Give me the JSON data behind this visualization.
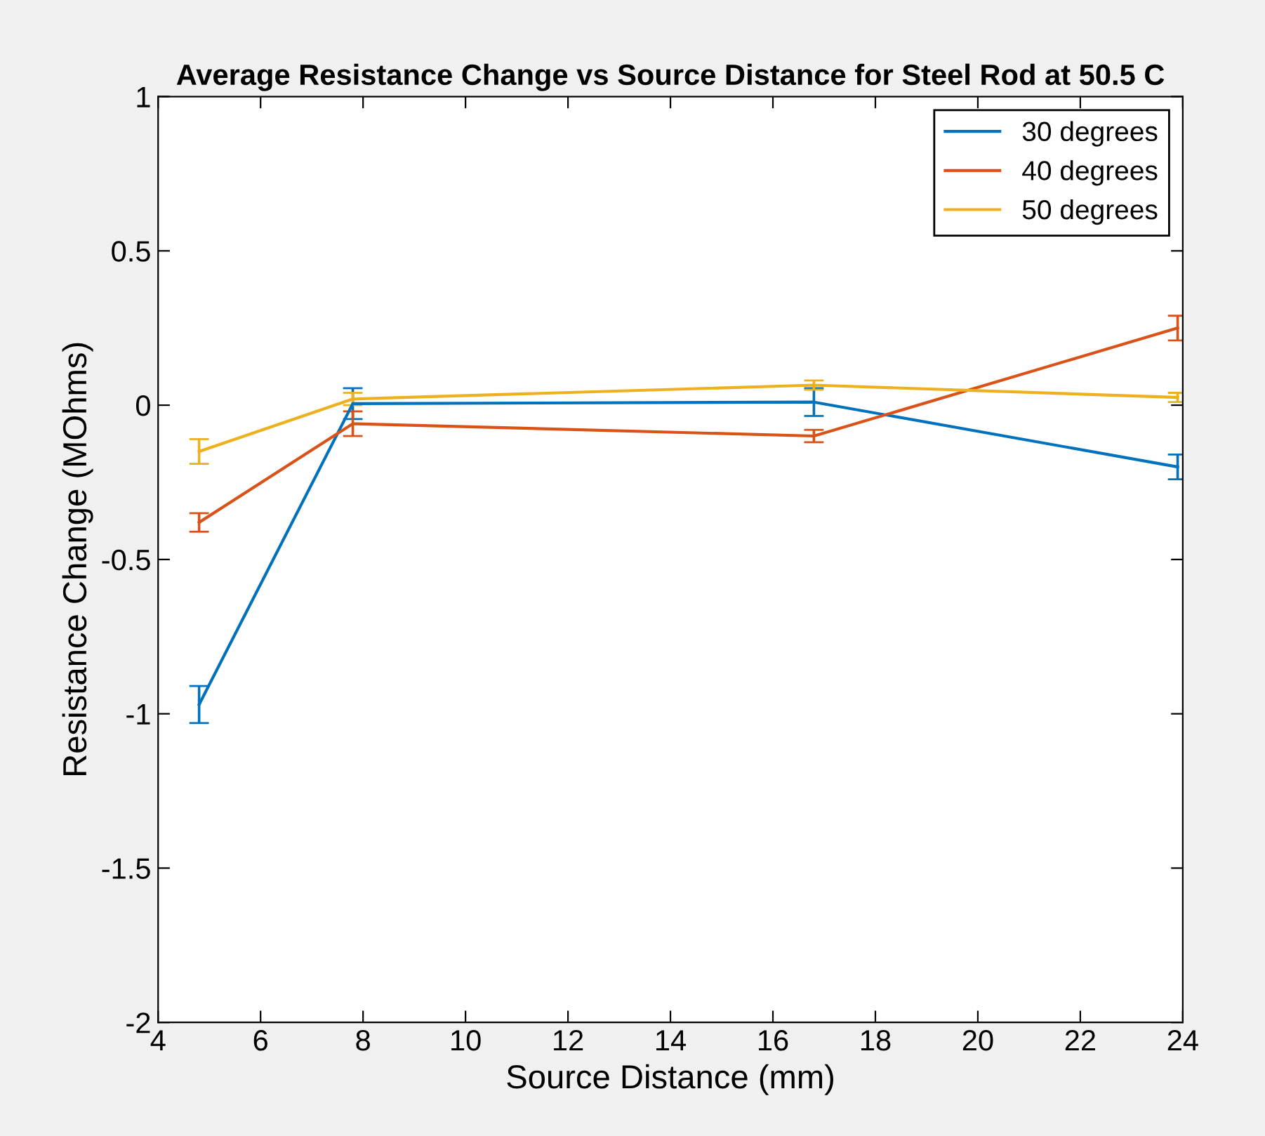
{
  "chart_data": {
    "type": "line",
    "title": "Average Resistance Change vs Source Distance for Steel Rod at 50.5 C",
    "xlabel": "Source Distance (mm)",
    "ylabel": "Resistance Change (MOhms)",
    "x": [
      4.8,
      7.8,
      16.8,
      23.9
    ],
    "series": [
      {
        "name": "30 degrees",
        "color": "#0072bd",
        "values": [
          -0.97,
          0.005,
          0.01,
          -0.2
        ],
        "errors": [
          0.06,
          0.05,
          0.045,
          0.04
        ]
      },
      {
        "name": "40 degrees",
        "color": "#d95319",
        "values": [
          -0.38,
          -0.06,
          -0.1,
          0.25
        ],
        "errors": [
          0.03,
          0.04,
          0.02,
          0.04
        ]
      },
      {
        "name": "50 degrees",
        "color": "#edb120",
        "values": [
          -0.15,
          0.02,
          0.065,
          0.025
        ],
        "errors": [
          0.04,
          0.02,
          0.015,
          0.015
        ]
      }
    ],
    "xlim": [
      4,
      24
    ],
    "xticks": [
      4,
      6,
      8,
      10,
      12,
      14,
      16,
      18,
      20,
      22,
      24
    ],
    "ylim": [
      -2,
      1
    ],
    "yticks": [
      -2,
      -1.5,
      -1,
      -0.5,
      0,
      0.5,
      1
    ],
    "grid": false,
    "legend": "top right",
    "marker": "none",
    "line_style": "solid"
  }
}
